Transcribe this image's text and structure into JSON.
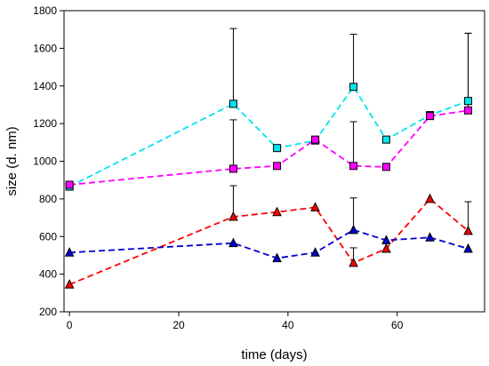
{
  "chart_data": {
    "type": "line",
    "title": "",
    "xlabel": "time (days)",
    "ylabel": "size (d. nm)",
    "xlim": [
      -1,
      76
    ],
    "ylim": [
      200,
      1800
    ],
    "xticks": [
      0,
      20,
      40,
      60
    ],
    "yticks": [
      200,
      400,
      600,
      800,
      1000,
      1200,
      1400,
      1600,
      1800
    ],
    "grid": false,
    "legend": "none",
    "series": [
      {
        "color": "#00e5ee",
        "marker": "square",
        "line_style": "dashed",
        "points": [
          {
            "x": 0,
            "y": 865
          },
          {
            "x": 30,
            "y": 1305,
            "err_up": 400
          },
          {
            "x": 38,
            "y": 1070
          },
          {
            "x": 45,
            "y": 1110
          },
          {
            "x": 52,
            "y": 1395,
            "err_up": 280
          },
          {
            "x": 58,
            "y": 1115
          },
          {
            "x": 66,
            "y": 1245
          },
          {
            "x": 73,
            "y": 1320,
            "err_up": 360
          }
        ]
      },
      {
        "color": "#ff00ff",
        "marker": "square",
        "line_style": "dashed",
        "points": [
          {
            "x": 0,
            "y": 875
          },
          {
            "x": 30,
            "y": 960,
            "err_up": 260
          },
          {
            "x": 38,
            "y": 975
          },
          {
            "x": 45,
            "y": 1115
          },
          {
            "x": 52,
            "y": 975,
            "err_up": 235
          },
          {
            "x": 58,
            "y": 970
          },
          {
            "x": 66,
            "y": 1240
          },
          {
            "x": 73,
            "y": 1270,
            "err_up": 410
          }
        ]
      },
      {
        "color": "#ff0000",
        "marker": "triangle",
        "line_style": "dashed",
        "points": [
          {
            "x": 0,
            "y": 345
          },
          {
            "x": 30,
            "y": 705,
            "err_up": 165
          },
          {
            "x": 38,
            "y": 730
          },
          {
            "x": 45,
            "y": 755
          },
          {
            "x": 52,
            "y": 460,
            "err_up": 80
          },
          {
            "x": 58,
            "y": 535
          },
          {
            "x": 66,
            "y": 800
          },
          {
            "x": 73,
            "y": 630,
            "err_up": 155
          }
        ]
      },
      {
        "color": "#0000cd",
        "marker": "triangle",
        "line_style": "dashed",
        "points": [
          {
            "x": 0,
            "y": 515
          },
          {
            "x": 30,
            "y": 565
          },
          {
            "x": 38,
            "y": 485
          },
          {
            "x": 45,
            "y": 515
          },
          {
            "x": 52,
            "y": 635,
            "err_up": 170
          },
          {
            "x": 58,
            "y": 580
          },
          {
            "x": 66,
            "y": 595
          },
          {
            "x": 73,
            "y": 535
          }
        ]
      }
    ]
  }
}
